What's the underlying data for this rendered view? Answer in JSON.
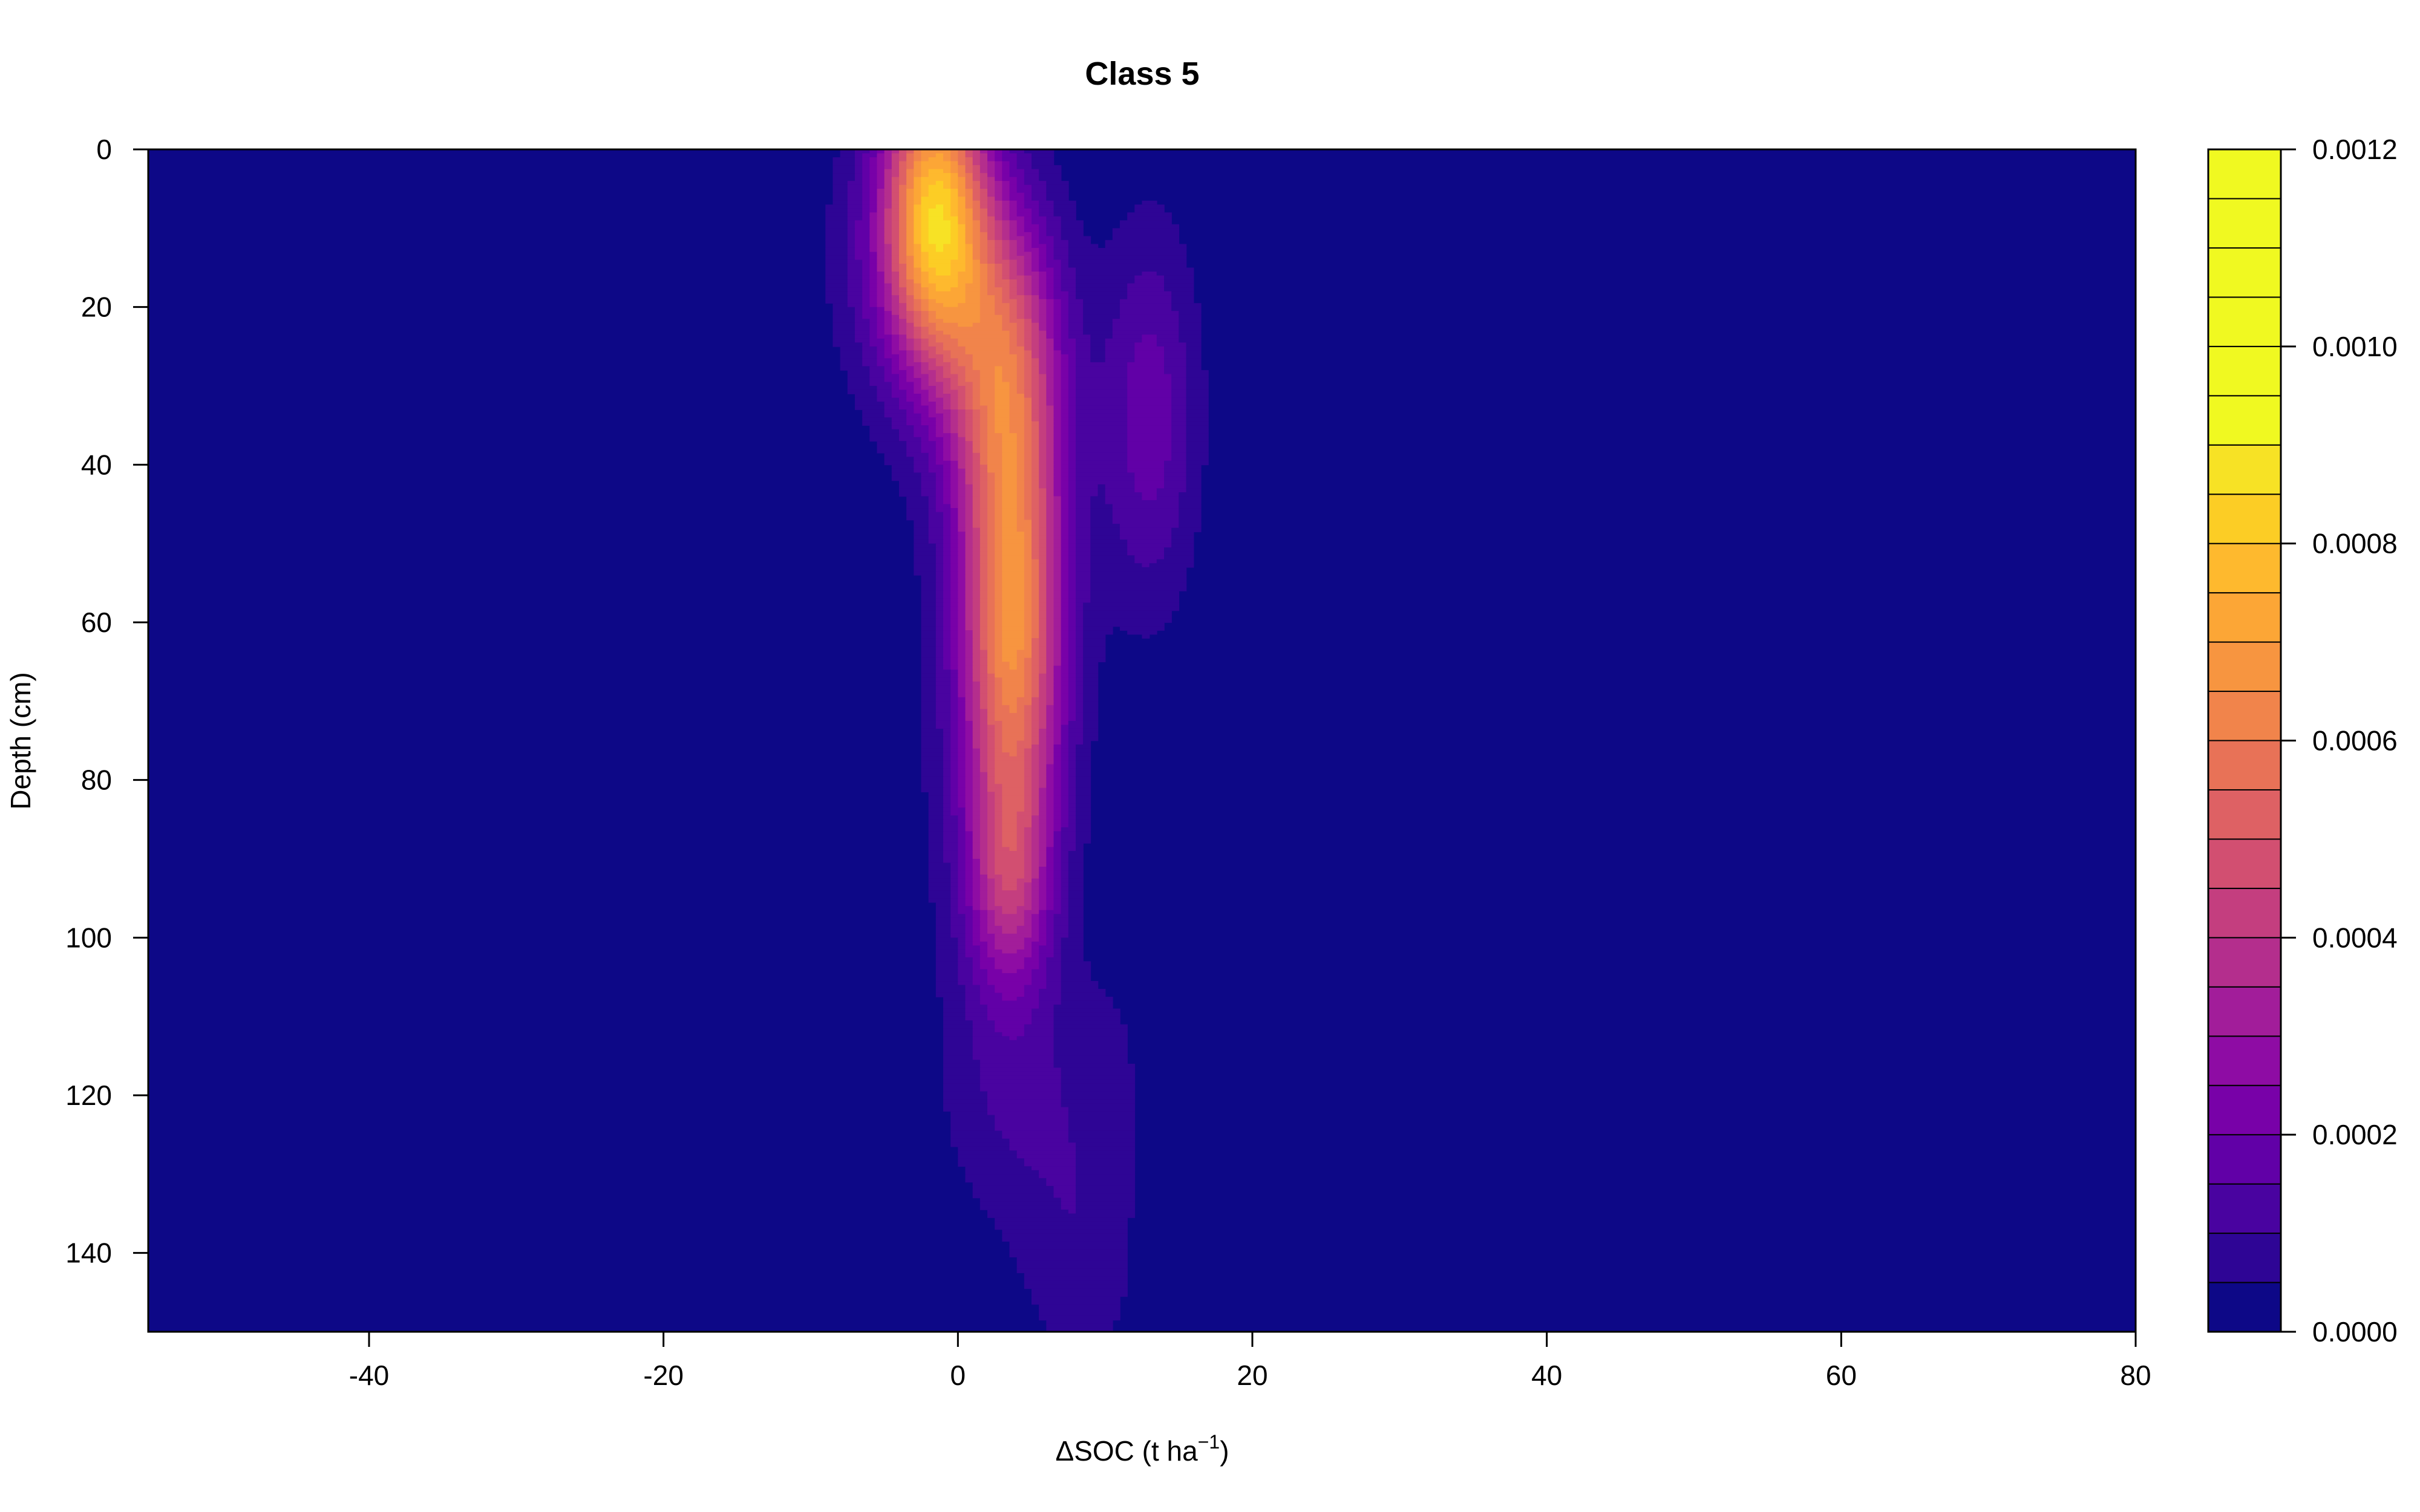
{
  "chart_data": {
    "type": "heatmap",
    "subtype": "filled-contour",
    "title": "Class 5",
    "xlabel_main": "ΔSOC (t ha",
    "xlabel_sup": "−1",
    "xlabel_close": ")",
    "ylabel": "Depth (cm)",
    "xlim": [
      -55,
      80
    ],
    "ylim": [
      0,
      150
    ],
    "y_reversed": true,
    "x_ticks": [
      -40,
      -20,
      0,
      20,
      40,
      60,
      80
    ],
    "y_ticks": [
      0,
      20,
      40,
      60,
      80,
      100,
      120,
      140
    ],
    "legend": {
      "position": "right",
      "min": 0.0,
      "max": 0.0012,
      "levels": 24,
      "tick_values": [
        0.0,
        0.0002,
        0.0004,
        0.0006,
        0.0008,
        0.001,
        0.0012
      ],
      "tick_labels": [
        "0.0000",
        "0.0002",
        "0.0004",
        "0.0006",
        "0.0008",
        "0.0010",
        "0.0012"
      ],
      "colors": [
        "#0d0887",
        "#2e0595",
        "#4903a0",
        "#6100a7",
        "#7801a8",
        "#8e0ca4",
        "#a21d9a",
        "#b42e8d",
        "#c43e7f",
        "#d24f71",
        "#de6164",
        "#e87257",
        "#f1844b",
        "#f79540",
        "#fca636",
        "#feb92e",
        "#fccd25",
        "#f7e225",
        "#f0f921",
        "#f0f921",
        "#f0f921",
        "#f0f921",
        "#f0f921",
        "#f0f921"
      ]
    },
    "density_components": [
      {
        "x": -1.5,
        "y": 8,
        "sx": 2.4,
        "sy": 13,
        "amp": 0.00072
      },
      {
        "x": 3.0,
        "y": 26,
        "sx": 2.8,
        "sy": 14,
        "amp": 0.00042
      },
      {
        "x": 3.7,
        "y": 60,
        "sx": 2.4,
        "sy": 20,
        "amp": 0.00062
      },
      {
        "x": 3.5,
        "y": 93,
        "sx": 2.0,
        "sy": 10,
        "amp": 0.00026
      },
      {
        "x": -4.0,
        "y": 14,
        "sx": 3.5,
        "sy": 14,
        "amp": 0.00012
      },
      {
        "x": 13.0,
        "y": 34,
        "sx": 2.4,
        "sy": 17,
        "amp": 0.00018
      },
      {
        "x": 4.0,
        "y": 120,
        "sx": 3.5,
        "sy": 12,
        "amp": 8e-05
      },
      {
        "x": 8.5,
        "y": 140,
        "sx": 3.0,
        "sy": 13,
        "amp": 8e-05
      },
      {
        "x": 10.5,
        "y": 115,
        "sx": 2.0,
        "sy": 10,
        "amp": 4e-05
      },
      {
        "x": 2.0,
        "y": 75,
        "sx": 4.5,
        "sy": 35,
        "amp": 5e-05
      }
    ]
  }
}
